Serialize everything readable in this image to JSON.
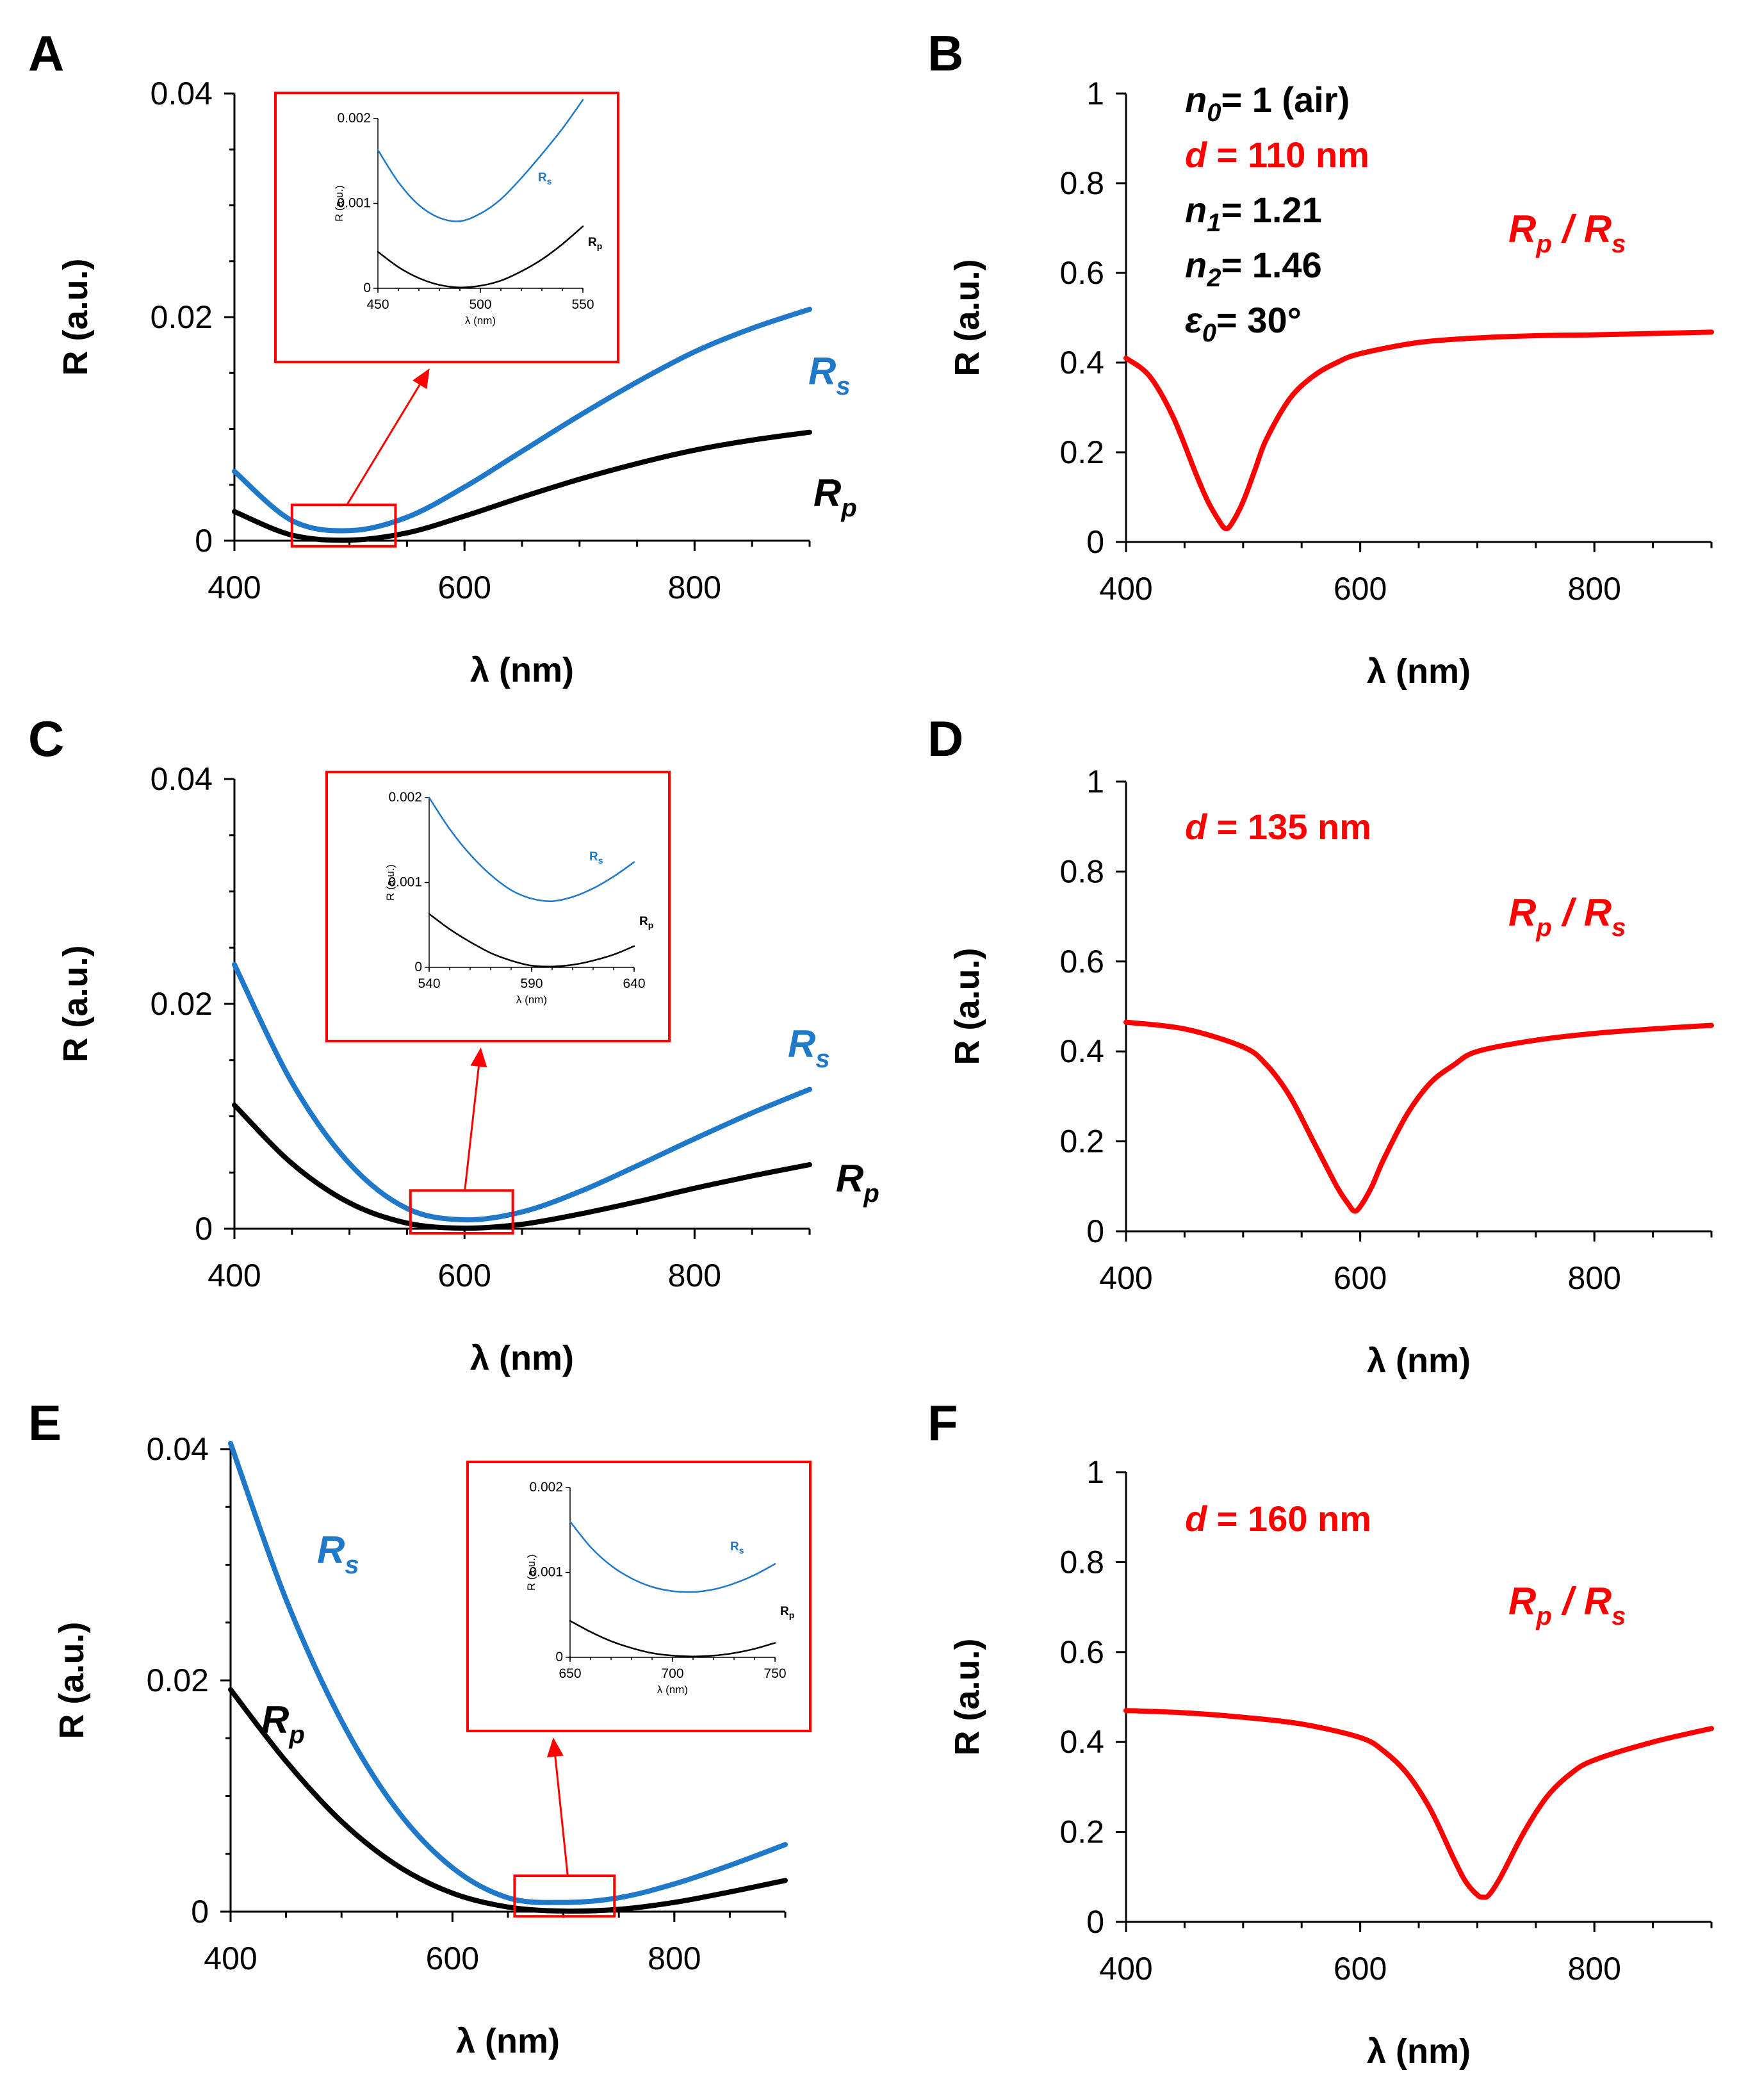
{
  "colors": {
    "rs": "#1f78c8",
    "rp": "#000000",
    "ratio": "#ff0000",
    "box": "#ff0000",
    "axis": "#000000"
  },
  "chart_data": [
    {
      "panel": "A",
      "type": "line",
      "xlabel": "λ (nm)",
      "ylabel": "R (a.u.)",
      "xlim": [
        400,
        900
      ],
      "ylim": [
        0,
        0.04
      ],
      "xticks": [
        "400",
        "600",
        "800"
      ],
      "yticks": [
        "0",
        "0.02",
        "0.04"
      ],
      "x": [
        400,
        450,
        500,
        550,
        600,
        650,
        700,
        750,
        800,
        850,
        900
      ],
      "series": [
        {
          "name": "Rs",
          "values": [
            0.0062,
            0.0018,
            0.0009,
            0.0021,
            0.0048,
            0.008,
            0.0112,
            0.0142,
            0.0169,
            0.019,
            0.0207
          ]
        },
        {
          "name": "Rp",
          "values": [
            0.0026,
            0.0005,
            5e-05,
            0.0007,
            0.0022,
            0.0039,
            0.0055,
            0.0069,
            0.0081,
            0.009,
            0.0097
          ]
        }
      ],
      "labels": {
        "rs_main": "R",
        "rs_sub": "s",
        "rp_main": "R",
        "rp_sub": "p"
      },
      "zoom_box": {
        "x": [
          450,
          540
        ],
        "y": [
          -0.0005,
          0.0032
        ]
      },
      "inset": {
        "xlim": [
          450,
          550
        ],
        "ylim": [
          0,
          0.002
        ],
        "xticks": [
          "450",
          "500",
          "550"
        ],
        "yticks": [
          "0",
          "0.001",
          "0.002"
        ],
        "xlabel": "λ (nm)",
        "ylabel": "R (a.u.)",
        "x": [
          450,
          460,
          470,
          480,
          490,
          500,
          510,
          520,
          530,
          540,
          550
        ],
        "series": [
          {
            "name": "Rs",
            "values": [
              0.00163,
              0.00125,
              0.00098,
              0.00083,
              0.00079,
              0.00088,
              0.00105,
              0.0013,
              0.00158,
              0.00188,
              0.00222
            ]
          },
          {
            "name": "Rp",
            "values": [
              0.00043,
              0.00025,
              0.00012,
              4e-05,
              1e-05,
              3e-05,
              9e-05,
              0.0002,
              0.00034,
              0.00052,
              0.00073
            ]
          }
        ],
        "labels": {
          "rs_main": "R",
          "rs_sub": "s",
          "rp_main": "R",
          "rp_sub": "p"
        }
      }
    },
    {
      "panel": "B",
      "type": "line",
      "xlabel": "λ (nm)",
      "ylabel": "R (a.u.)",
      "xlim": [
        400,
        900
      ],
      "ylim": [
        0,
        1
      ],
      "xticks": [
        "400",
        "600",
        "800"
      ],
      "yticks": [
        "0",
        "0.2",
        "0.4",
        "0.6",
        "0.8",
        "1"
      ],
      "x": [
        400,
        420,
        440,
        460,
        470,
        480,
        485,
        490,
        500,
        510,
        520,
        540,
        560,
        580,
        600,
        650,
        700,
        750,
        800,
        850,
        900
      ],
      "series": [
        {
          "name": "Rp / Rs",
          "values": [
            0.41,
            0.37,
            0.28,
            0.15,
            0.09,
            0.045,
            0.03,
            0.04,
            0.09,
            0.16,
            0.23,
            0.32,
            0.37,
            0.4,
            0.42,
            0.445,
            0.455,
            0.46,
            0.462,
            0.465,
            0.468
          ]
        }
      ],
      "ratio_label": {
        "main1": "R",
        "sub1": "p",
        "sep": " / ",
        "main2": "R",
        "sub2": "s"
      },
      "params": [
        {
          "sym": "n",
          "sub": "0",
          "rest": "= 1 (air)",
          "color": "#000000"
        },
        {
          "sym": "d",
          "sub": "",
          "rest": " = 110 nm",
          "color": "#ff0000"
        },
        {
          "sym": "n",
          "sub": "1",
          "rest": "= 1.21",
          "color": "#000000"
        },
        {
          "sym": "n",
          "sub": "2",
          "rest": "= 1.46",
          "color": "#000000"
        },
        {
          "sym": "ε",
          "sub": "0",
          "rest": "= 30°",
          "color": "#000000"
        }
      ]
    },
    {
      "panel": "C",
      "type": "line",
      "xlabel": "λ (nm)",
      "ylabel": "R (a.u.)",
      "xlim": [
        400,
        900
      ],
      "ylim": [
        0,
        0.04
      ],
      "xticks": [
        "400",
        "600",
        "800"
      ],
      "yticks": [
        "0",
        "0.02",
        "0.04"
      ],
      "x": [
        400,
        450,
        500,
        550,
        600,
        650,
        700,
        750,
        800,
        850,
        900
      ],
      "series": [
        {
          "name": "Rs",
          "values": [
            0.0235,
            0.013,
            0.0058,
            0.0018,
            0.0008,
            0.0015,
            0.0033,
            0.0056,
            0.008,
            0.0103,
            0.0124
          ]
        },
        {
          "name": "Rp",
          "values": [
            0.011,
            0.0058,
            0.0023,
            0.0005,
            5e-05,
            0.0004,
            0.0013,
            0.0024,
            0.0036,
            0.0047,
            0.0057
          ]
        }
      ],
      "labels": {
        "rs_main": "R",
        "rs_sub": "s",
        "rp_main": "R",
        "rp_sub": "p"
      },
      "zoom_box": {
        "x": [
          553,
          642
        ],
        "y": [
          -0.0004,
          0.0034
        ]
      },
      "inset": {
        "xlim": [
          540,
          640
        ],
        "ylim": [
          0,
          0.002
        ],
        "xticks": [
          "540",
          "590",
          "640"
        ],
        "yticks": [
          "0",
          "0.001",
          "0.002"
        ],
        "xlabel": "λ (nm)",
        "ylabel": "R (a.u.)",
        "x": [
          540,
          550,
          560,
          570,
          580,
          590,
          600,
          610,
          620,
          630,
          640
        ],
        "series": [
          {
            "name": "Rs",
            "values": [
              0.002,
              0.00163,
              0.00133,
              0.00109,
              0.00091,
              0.00081,
              0.00078,
              0.00083,
              0.00093,
              0.00107,
              0.00124
            ]
          },
          {
            "name": "Rp",
            "values": [
              0.00063,
              0.00045,
              0.0003,
              0.00017,
              8e-05,
              2e-05,
              1e-05,
              3e-05,
              8e-05,
              0.00015,
              0.00025
            ]
          }
        ],
        "labels": {
          "rs_main": "R",
          "rs_sub": "s",
          "rp_main": "R",
          "rp_sub": "p"
        }
      }
    },
    {
      "panel": "D",
      "type": "line",
      "xlabel": "λ (nm)",
      "ylabel": "R (a.u.)",
      "xlim": [
        400,
        900
      ],
      "ylim": [
        0,
        1
      ],
      "xticks": [
        "400",
        "600",
        "800"
      ],
      "yticks": [
        "0",
        "0.2",
        "0.4",
        "0.6",
        "0.8",
        "1"
      ],
      "x": [
        400,
        450,
        500,
        520,
        540,
        560,
        580,
        590,
        595,
        600,
        610,
        620,
        640,
        660,
        680,
        700,
        750,
        800,
        850,
        900
      ],
      "series": [
        {
          "name": "Rp / Rs",
          "values": [
            0.465,
            0.45,
            0.41,
            0.37,
            0.3,
            0.2,
            0.1,
            0.06,
            0.045,
            0.055,
            0.1,
            0.16,
            0.26,
            0.33,
            0.37,
            0.4,
            0.425,
            0.44,
            0.45,
            0.458
          ]
        }
      ],
      "ratio_label": {
        "main1": "R",
        "sub1": "p",
        "sep": " / ",
        "main2": "R",
        "sub2": "s"
      },
      "params": [
        {
          "sym": "d",
          "sub": "",
          "rest": " = 135 nm",
          "color": "#ff0000"
        }
      ]
    },
    {
      "panel": "E",
      "type": "line",
      "xlabel": "λ (nm)",
      "ylabel": "R (a.u.)",
      "xlim": [
        400,
        900
      ],
      "ylim": [
        0,
        0.04
      ],
      "xticks": [
        "400",
        "600",
        "800"
      ],
      "yticks": [
        "0",
        "0.02",
        "0.04"
      ],
      "x": [
        400,
        450,
        500,
        550,
        600,
        650,
        700,
        750,
        800,
        850,
        900
      ],
      "series": [
        {
          "name": "Rs",
          "values": [
            0.0405,
            0.027,
            0.0165,
            0.0088,
            0.0038,
            0.0012,
            0.0008,
            0.0012,
            0.0024,
            0.004,
            0.0058
          ]
        },
        {
          "name": "Rp",
          "values": [
            0.0192,
            0.013,
            0.0078,
            0.004,
            0.0016,
            0.0004,
            5e-05,
            0.0002,
            0.0008,
            0.0017,
            0.0027
          ]
        }
      ],
      "labels": {
        "rs_main": "R",
        "rs_sub": "s",
        "rp_main": "R",
        "rp_sub": "p"
      },
      "zoom_box": {
        "x": [
          656,
          746
        ],
        "y": [
          -0.0004,
          0.0031
        ]
      },
      "inset": {
        "xlim": [
          650,
          750
        ],
        "ylim": [
          0,
          0.002
        ],
        "xticks": [
          "650",
          "700",
          "750"
        ],
        "yticks": [
          "0",
          "0.001",
          "0.002"
        ],
        "xlabel": "λ (nm)",
        "ylabel": "R (a.u.)",
        "x": [
          650,
          660,
          670,
          680,
          690,
          700,
          710,
          720,
          730,
          740,
          750
        ],
        "series": [
          {
            "name": "Rs",
            "values": [
              0.0016,
              0.0013,
              0.00108,
              0.00093,
              0.00083,
              0.00078,
              0.00077,
              0.0008,
              0.00087,
              0.00097,
              0.0011
            ]
          },
          {
            "name": "Rp",
            "values": [
              0.00043,
              0.0003,
              0.00019,
              0.00011,
              5e-05,
              2e-05,
              1e-05,
              2e-05,
              5e-05,
              0.0001,
              0.00017
            ]
          }
        ],
        "labels": {
          "rs_main": "R",
          "rs_sub": "s",
          "rp_main": "R",
          "rp_sub": "p"
        }
      }
    },
    {
      "panel": "F",
      "type": "line",
      "xlabel": "λ (nm)",
      "ylabel": "R (a.u.)",
      "xlim": [
        400,
        900
      ],
      "ylim": [
        0,
        1
      ],
      "xticks": [
        "400",
        "600",
        "800"
      ],
      "yticks": [
        "0",
        "0.2",
        "0.4",
        "0.6",
        "0.8",
        "1"
      ],
      "x": [
        400,
        450,
        500,
        550,
        600,
        620,
        640,
        660,
        680,
        690,
        700,
        705,
        710,
        720,
        740,
        760,
        780,
        800,
        850,
        900
      ],
      "series": [
        {
          "name": "Rp / Rs",
          "values": [
            0.47,
            0.465,
            0.455,
            0.44,
            0.41,
            0.38,
            0.33,
            0.25,
            0.14,
            0.09,
            0.06,
            0.055,
            0.06,
            0.1,
            0.2,
            0.28,
            0.33,
            0.36,
            0.4,
            0.43
          ]
        }
      ],
      "ratio_label": {
        "main1": "R",
        "sub1": "p",
        "sep": " / ",
        "main2": "R",
        "sub2": "s"
      },
      "params": [
        {
          "sym": "d",
          "sub": "",
          "rest": " = 160 nm",
          "color": "#ff0000"
        }
      ]
    }
  ]
}
